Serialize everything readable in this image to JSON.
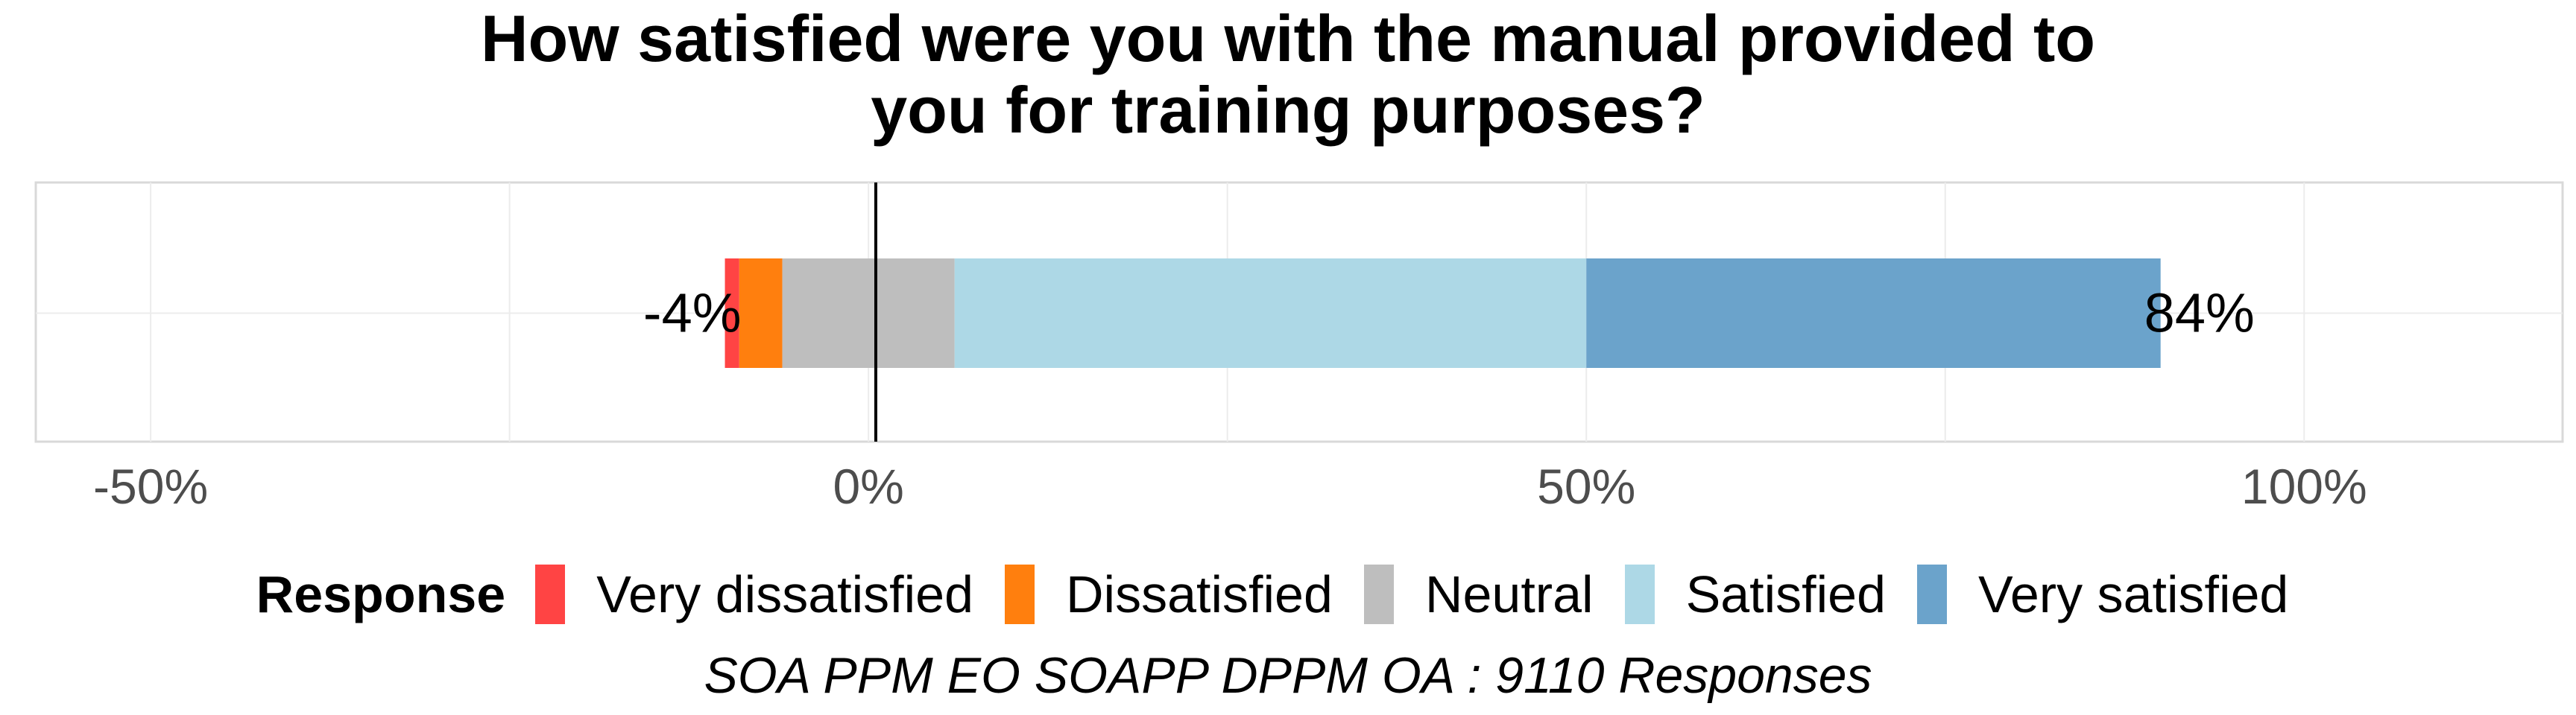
{
  "chart_data": {
    "type": "bar",
    "orientation": "horizontal",
    "stacked": "diverging",
    "title": "How satisfied were you with the manual provided to you for training purposes?",
    "title_lines": [
      "How satisfied were you with the manual provided to",
      "you for training purposes?"
    ],
    "caption": "SOA PPM EO SOAPP DPPM OA : 9110 Responses",
    "legend_title": "Response",
    "legend_position": "bottom",
    "xlim": [
      -0.58,
      1.18
    ],
    "x_ticks": [
      -0.5,
      0,
      0.5,
      1.0
    ],
    "x_tick_labels": [
      "-50%",
      "0%",
      "50%",
      "100%"
    ],
    "grid": true,
    "series": [
      {
        "name": "Very dissatisfied",
        "start": -0.1,
        "end": -0.09,
        "color": "#FF4444"
      },
      {
        "name": "Dissatisfied",
        "start": -0.09,
        "end": -0.06,
        "color": "#FF7F0E"
      },
      {
        "name": "Neutral",
        "start": -0.06,
        "end": 0.06,
        "color": "#BEBEBE"
      },
      {
        "name": "Satisfied",
        "start": 0.06,
        "end": 0.5,
        "color": "#ADD8E6"
      },
      {
        "name": "Very satisfied",
        "start": 0.5,
        "end": 0.9,
        "color": "#6BA3CB"
      }
    ],
    "annotations": [
      {
        "text": "-4%",
        "x": -0.1,
        "side": "left"
      },
      {
        "text": "84%",
        "x": 0.9,
        "side": "right"
      }
    ]
  }
}
